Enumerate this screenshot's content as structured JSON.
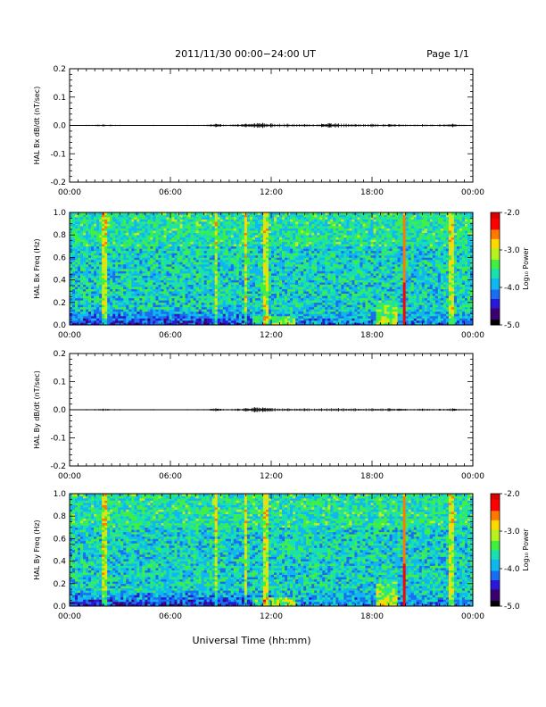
{
  "header": {
    "title": "2011/11/30  00:00−24:00 UT",
    "page_label": "Page 1/1"
  },
  "xaxis_label": "Universal Time (hh:mm)",
  "colors": {
    "colormap": [
      "#000000",
      "#3b0070",
      "#2a18d8",
      "#1a6cf0",
      "#10b6f0",
      "#18e0b0",
      "#40f040",
      "#b8f020",
      "#ffd800",
      "#ff7800",
      "#ff0000",
      "#d80000"
    ]
  },
  "chart_data": [
    {
      "type": "line",
      "ylabel": "HAL Bx dB/dt (nT/sec)",
      "xlim": [
        0,
        24
      ],
      "ylim": [
        -0.2,
        0.2
      ],
      "x_ticks": [
        "00:00",
        "06:00",
        "12:00",
        "18:00",
        "00:00"
      ],
      "y_ticks": [
        "-0.2",
        "-0.1",
        "0.0",
        "0.1",
        "0.2"
      ],
      "series": [
        {
          "x": [
            0,
            1,
            2,
            3,
            4,
            5,
            6,
            7,
            8,
            8.7,
            9,
            10,
            10.5,
            11,
            11.5,
            12,
            13,
            14,
            15,
            15.5,
            16,
            17,
            18,
            19,
            19.6,
            20,
            21,
            22,
            22.8,
            23,
            24
          ],
          "values": [
            0.0,
            0.002,
            0.004,
            0.002,
            0.001,
            0.002,
            0.001,
            0.002,
            0.002,
            0.006,
            0.004,
            0.004,
            0.006,
            0.008,
            0.009,
            0.007,
            0.006,
            0.005,
            0.006,
            0.008,
            0.007,
            0.005,
            0.006,
            0.005,
            0.004,
            0.003,
            0.004,
            0.003,
            0.006,
            0.003,
            0.002
          ]
        }
      ]
    },
    {
      "type": "heatmap",
      "ylabel": "HAL Bx Freq (Hz)",
      "xlim": [
        0,
        24
      ],
      "ylim": [
        0.0,
        1.0
      ],
      "x_ticks": [
        "00:00",
        "06:00",
        "12:00",
        "18:00",
        "00:00"
      ],
      "y_ticks": [
        "0.0",
        "0.2",
        "0.4",
        "0.6",
        "0.8",
        "1.0"
      ],
      "colorbar_label": "Log₁₀ Power",
      "colorbar_ticks": [
        "-2.0",
        "-3.0",
        "-4.0",
        "-5.0"
      ],
      "zlim": [
        -5.0,
        -2.0
      ],
      "vertical_features_hours": [
        2.1,
        8.7,
        10.5,
        11.7,
        19.9,
        22.7
      ],
      "strong_feature_hour": 19.9
    },
    {
      "type": "line",
      "ylabel": "HAL By dB/dt (nT/sec)",
      "xlim": [
        0,
        24
      ],
      "ylim": [
        -0.2,
        0.2
      ],
      "x_ticks": [
        "00:00",
        "06:00",
        "12:00",
        "18:00",
        "00:00"
      ],
      "y_ticks": [
        "-0.2",
        "-0.1",
        "0.0",
        "0.1",
        "0.2"
      ],
      "series": [
        {
          "x": [
            0,
            1,
            2,
            3,
            4,
            5,
            6,
            7,
            8,
            8.7,
            9,
            10,
            10.5,
            11,
            11.5,
            12,
            13,
            14,
            15,
            16,
            17,
            18,
            19,
            19.6,
            20,
            21,
            22,
            22.8,
            23,
            24
          ],
          "values": [
            0.0,
            0.002,
            0.004,
            0.002,
            0.001,
            0.002,
            0.001,
            0.002,
            0.002,
            0.005,
            0.003,
            0.004,
            0.006,
            0.009,
            0.008,
            0.006,
            0.005,
            0.005,
            0.005,
            0.006,
            0.005,
            0.005,
            0.005,
            0.004,
            0.003,
            0.004,
            0.003,
            0.005,
            0.003,
            0.002
          ]
        }
      ]
    },
    {
      "type": "heatmap",
      "ylabel": "HAL By Freq (Hz)",
      "xlim": [
        0,
        24
      ],
      "ylim": [
        0.0,
        1.0
      ],
      "x_ticks": [
        "00:00",
        "06:00",
        "12:00",
        "18:00",
        "00:00"
      ],
      "y_ticks": [
        "0.0",
        "0.2",
        "0.4",
        "0.6",
        "0.8",
        "1.0"
      ],
      "colorbar_label": "Log₁₀ Power",
      "colorbar_ticks": [
        "-2.0",
        "-3.0",
        "-4.0",
        "-5.0"
      ],
      "zlim": [
        -5.0,
        -2.0
      ],
      "vertical_features_hours": [
        2.1,
        8.7,
        10.5,
        11.7,
        19.9,
        22.7
      ],
      "strong_feature_hour": 19.9
    }
  ]
}
